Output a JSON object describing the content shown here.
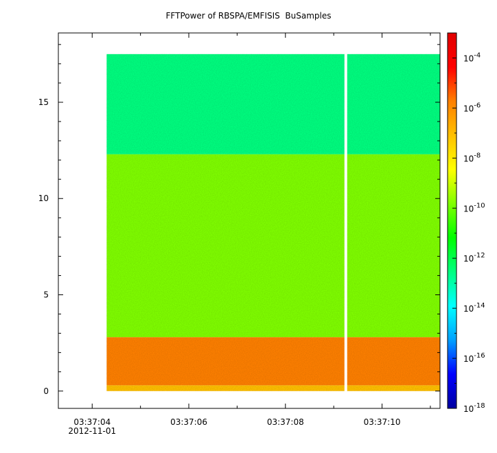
{
  "chart_data": {
    "type": "heatmap",
    "title": "FFTPower of RBSPA/EMFISIS  BuSamples",
    "xlabel": "",
    "ylabel": "",
    "x_ticks": [
      "03:37:04",
      "03:37:06",
      "03:37:08",
      "03:37:10"
    ],
    "x_tick_values": [
      4,
      6,
      8,
      10
    ],
    "x_date_label": "2012-11-01",
    "xlim": [
      3.3,
      11.2
    ],
    "y_ticks": [
      0,
      5,
      10,
      15
    ],
    "ylim": [
      -0.9,
      18.6
    ],
    "colorbar": {
      "scale": "log",
      "range": [
        1e-18,
        0.001
      ],
      "tick_labels": [
        {
          "base": "10",
          "exp": "-4"
        },
        {
          "base": "10",
          "exp": "-6"
        },
        {
          "base": "10",
          "exp": "-8"
        },
        {
          "base": "10",
          "exp": "-10"
        },
        {
          "base": "10",
          "exp": "-12"
        },
        {
          "base": "10",
          "exp": "-14"
        },
        {
          "base": "10",
          "exp": "-16"
        },
        {
          "base": "10",
          "exp": "-18"
        }
      ],
      "tick_values": [
        -4,
        -6,
        -8,
        -10,
        -12,
        -14,
        -16,
        -18
      ],
      "colors": [
        "#0000a0",
        "#0000ff",
        "#00a0ff",
        "#00ffff",
        "#00ff80",
        "#00ff00",
        "#80ff00",
        "#ffff00",
        "#ffc000",
        "#ff8000",
        "#ff0000",
        "#e00000"
      ]
    },
    "data_extent": {
      "x_start": 4.3,
      "x_end": 11.2,
      "y_min": 0,
      "y_max": 17.5
    },
    "gaps": [
      {
        "x": 9.25
      }
    ],
    "bands": [
      {
        "y_range": [
          0,
          0.3
        ],
        "log10_power": -7.5
      },
      {
        "y_range": [
          0.3,
          2.8
        ],
        "log10_power": -6.0
      },
      {
        "y_range": [
          2.8,
          12.3
        ],
        "log10_power": -10.5
      },
      {
        "y_range": [
          12.3,
          17.5
        ],
        "log10_power": -12.0
      }
    ]
  }
}
